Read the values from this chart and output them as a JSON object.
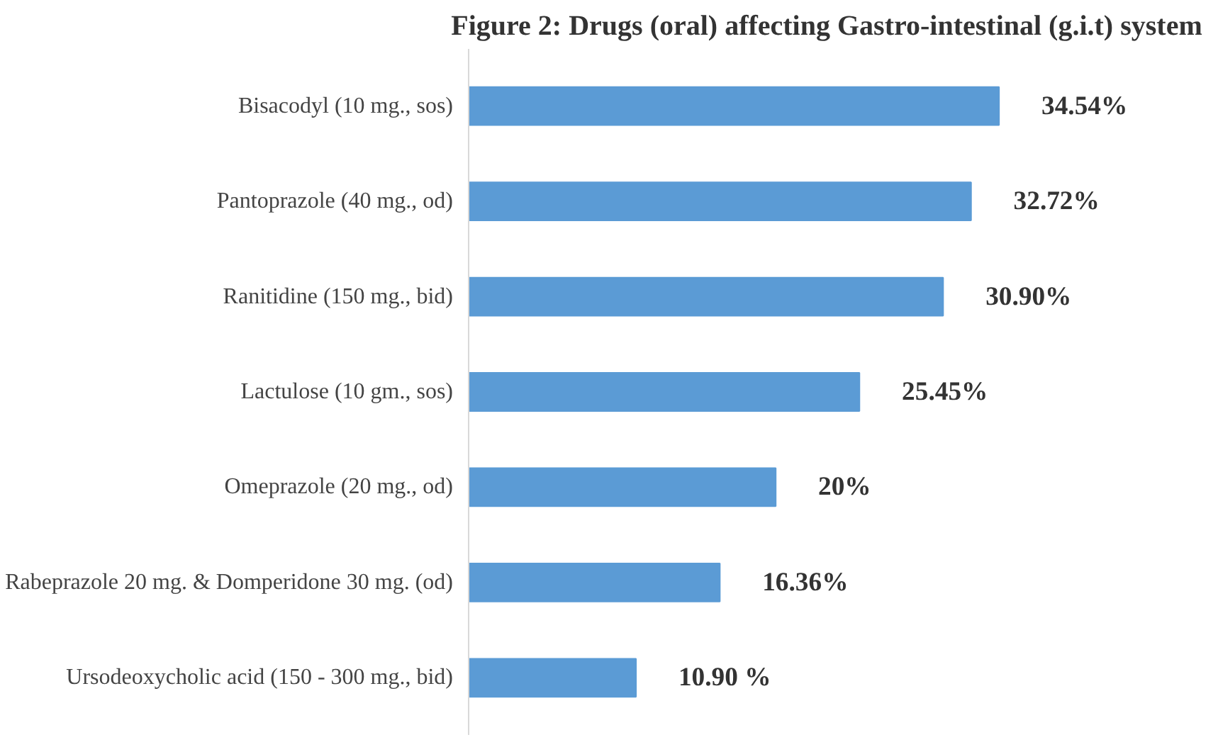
{
  "chart_data": {
    "type": "bar",
    "orientation": "horizontal",
    "title": "Figure 2: Drugs (oral) affecting Gastro-intestinal (g.i.t) system",
    "categories": [
      "Bisacodyl (10 mg., sos)",
      "Pantoprazole (40 mg., od)",
      "Ranitidine (150 mg., bid)",
      "Lactulose (10 gm., sos)",
      "Omeprazole (20 mg., od)",
      "Rabeprazole 20 mg. & Domperidone 30 mg. (od)",
      "Ursodeoxycholic acid (150 - 300 mg., bid)"
    ],
    "values": [
      34.54,
      32.72,
      30.9,
      25.45,
      20,
      16.36,
      10.9
    ],
    "value_labels": [
      "34.54%",
      "32.72%",
      "30.90%",
      "25.45%",
      "20%",
      "16.36%",
      "10.90 %"
    ],
    "color": "#5b9bd5"
  }
}
